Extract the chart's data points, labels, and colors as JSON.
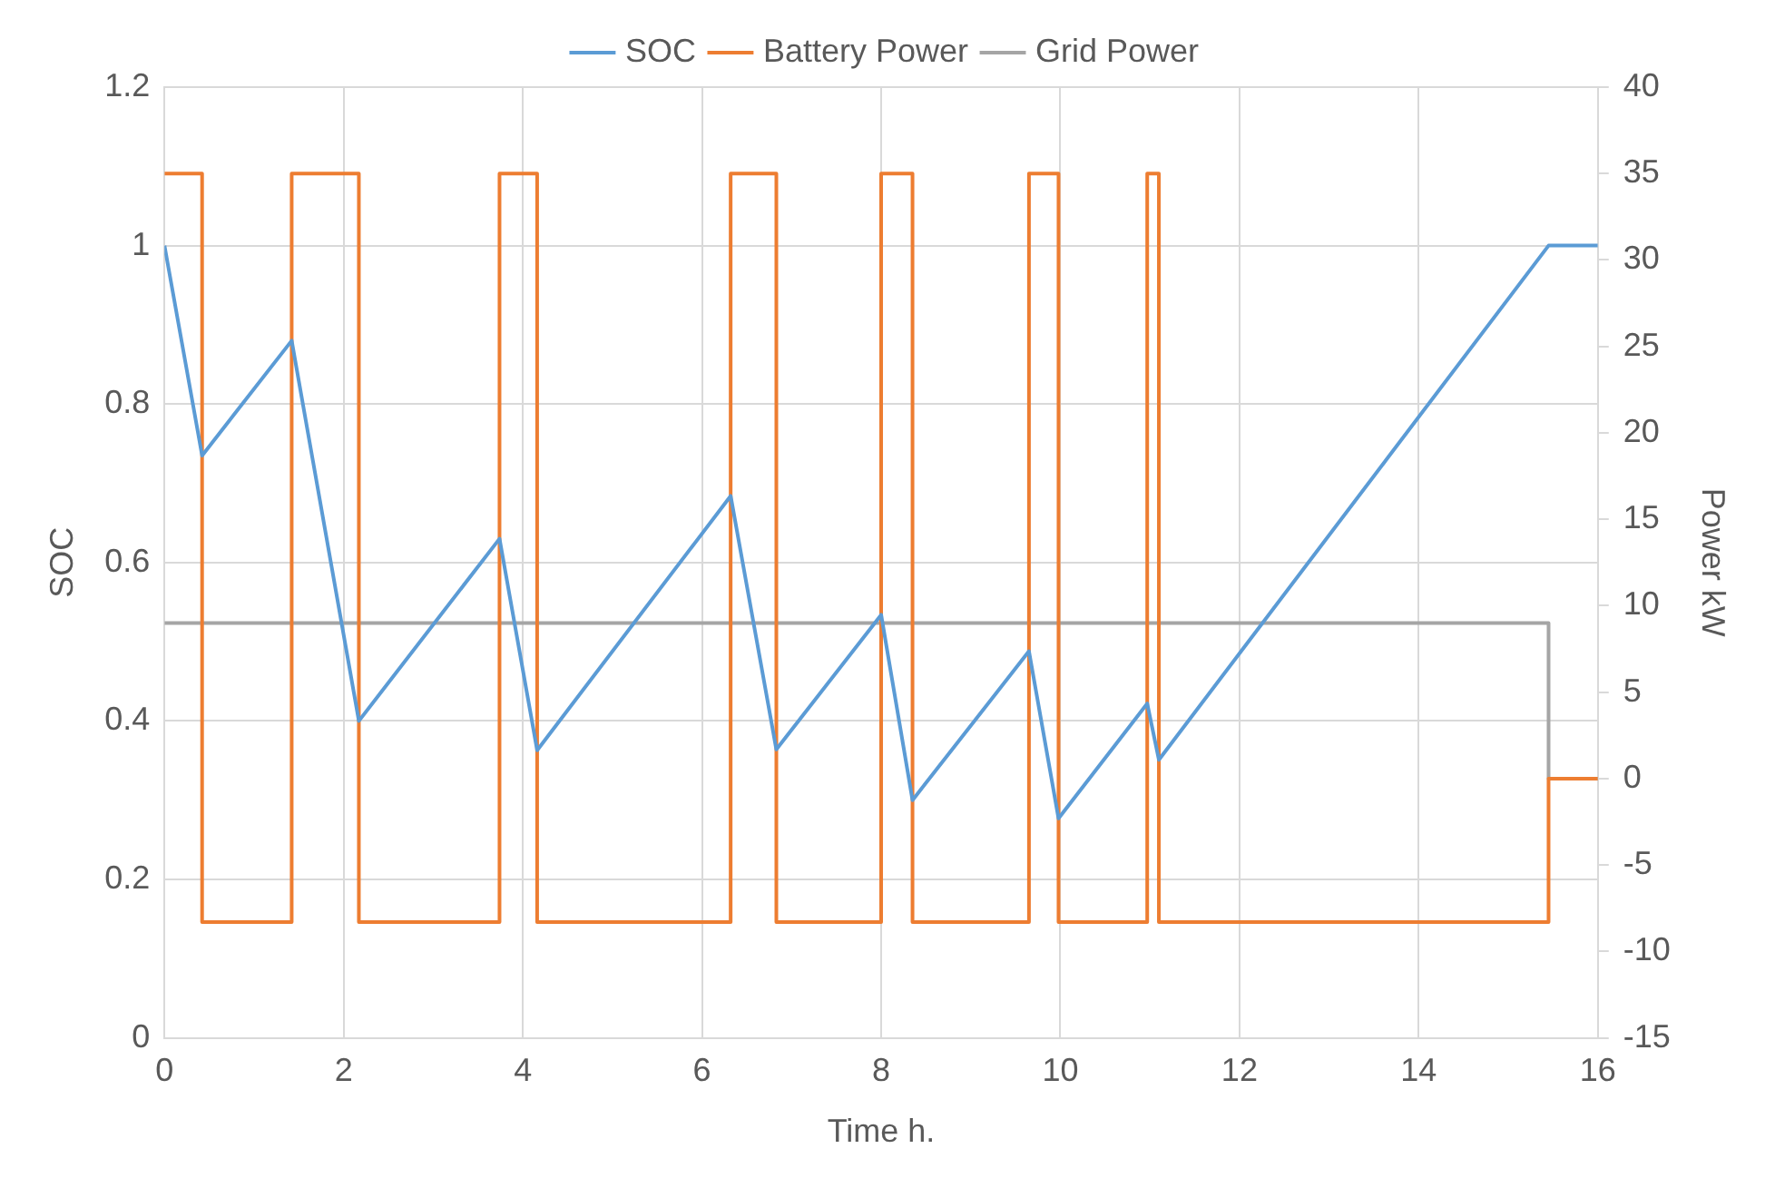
{
  "chart_data": {
    "type": "line",
    "xlabel": "Time h.",
    "ylabel": "SOC",
    "y2label": "Power kW",
    "legend": "top",
    "grid": true,
    "marker": "none",
    "line_style": "solid",
    "xlim": [
      0,
      16
    ],
    "xticks": [
      0,
      2,
      4,
      6,
      8,
      10,
      12,
      14,
      16
    ],
    "ylim": [
      0,
      1.2
    ],
    "yticks": [
      0,
      0.2,
      0.4,
      0.6,
      0.8,
      1,
      1.2
    ],
    "y2lim": [
      -15,
      40
    ],
    "y2ticks": [
      -15,
      -10,
      -5,
      0,
      5,
      10,
      15,
      20,
      25,
      30,
      35,
      40
    ],
    "series": [
      {
        "name": "SOC",
        "type": "line",
        "color": "#5b9bd5",
        "x": [
          0,
          0.42,
          1.42,
          2.17,
          3.74,
          4.16,
          6.32,
          6.83,
          8,
          8.35,
          9.65,
          9.98,
          10.97,
          11.1,
          15.45,
          16
        ],
        "values": [
          1,
          0.735,
          0.88,
          0.4,
          0.63,
          0.363,
          0.684,
          0.364,
          0.534,
          0.3,
          0.488,
          0.277,
          0.422,
          0.351,
          1,
          1
        ]
      },
      {
        "name": "Battery Power",
        "type": "step",
        "axis": "y2",
        "color": "#ed7d31",
        "x": [
          0,
          0.42,
          1.42,
          2.17,
          3.74,
          4.16,
          6.32,
          6.83,
          8,
          8.35,
          9.65,
          9.98,
          10.97,
          11.1,
          15.45,
          16
        ],
        "values": [
          35,
          -8.3,
          35,
          -8.3,
          35,
          -8.3,
          35,
          -8.3,
          35,
          -8.3,
          35,
          -8.3,
          35,
          -8.3,
          0,
          0
        ]
      },
      {
        "name": "Grid Power",
        "type": "step",
        "axis": "y2",
        "color": "#a5a5a5",
        "x": [
          0,
          15.45,
          16
        ],
        "values": [
          9,
          0,
          0
        ]
      }
    ]
  }
}
